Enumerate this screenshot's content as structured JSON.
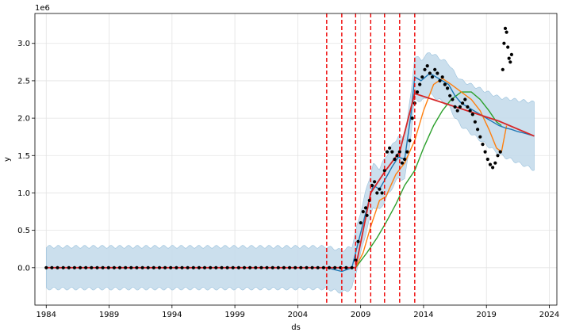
{
  "chart_data": {
    "type": "line",
    "title": "",
    "xlabel": "ds",
    "ylabel": "y",
    "y_multiplier_label": "1e6",
    "xlim": [
      1983.1,
      2024.6
    ],
    "ylim": [
      -500000,
      3400000
    ],
    "x_ticks": [
      1984,
      1989,
      1994,
      1999,
      2004,
      2009,
      2014,
      2019,
      2024
    ],
    "y_ticks": [
      0,
      500000,
      1000000,
      1500000,
      2000000,
      2500000,
      3000000
    ],
    "y_tick_labels": [
      "0.0",
      "0.5",
      "1.0",
      "1.5",
      "2.0",
      "2.5",
      "3.0"
    ],
    "grid": true,
    "changepoints": [
      2006.3,
      2007.5,
      2008.6,
      2009.8,
      2010.9,
      2012.1,
      2013.3
    ],
    "colors": {
      "band": "#c6dcec",
      "band_edge": "#8fbbd9",
      "forecast": "#1f77b4",
      "trend": "#d62728",
      "orange": "#ff7f0e",
      "green": "#2ca02c",
      "observed": "#000000",
      "changepoint": "#ee0000"
    },
    "series": [
      {
        "role": "trend",
        "x": [
          1984,
          2007.5,
          2008.6,
          2009.8,
          2010.9,
          2012.1,
          2013.3,
          2020.0,
          2022.8
        ],
        "y": [
          0,
          0,
          0,
          1000000,
          1280000,
          1550000,
          2330000,
          1960000,
          1760000
        ]
      },
      {
        "role": "forecast",
        "x": [
          1984,
          2006.3,
          2007.5,
          2008.3,
          2008.9,
          2009.5,
          2010.0,
          2010.5,
          2011.0,
          2011.5,
          2012.0,
          2012.5,
          2013.0,
          2013.3,
          2013.8,
          2014.5,
          2015.0,
          2015.5,
          2016.0,
          2016.5,
          2017.0,
          2017.5,
          2018.0,
          2018.5,
          2019.0,
          2019.5,
          2020.0,
          2020.5,
          2021.0,
          2021.5,
          2022.0,
          2022.8
        ],
        "y": [
          0,
          0,
          -50000,
          0,
          400000,
          800000,
          1100000,
          1050000,
          1200000,
          1350000,
          1480000,
          1450000,
          2050000,
          2550000,
          2500000,
          2600000,
          2550000,
          2500000,
          2450000,
          2300000,
          2200000,
          2150000,
          2100000,
          2050000,
          2000000,
          1950000,
          1900000,
          1870000,
          1850000,
          1820000,
          1800000,
          1760000
        ]
      },
      {
        "role": "orange",
        "x": [
          1984,
          2008.6,
          2009.2,
          2009.8,
          2010.5,
          2011.0,
          2011.8,
          2012.5,
          2013.3,
          2014.0,
          2014.8,
          2015.5,
          2016.2,
          2017.0,
          2017.8,
          2018.5,
          2019.2,
          2019.8,
          2020.2,
          2020.6
        ],
        "y": [
          0,
          0,
          200000,
          550000,
          900000,
          950000,
          1250000,
          1400000,
          1700000,
          2100000,
          2450000,
          2530000,
          2450000,
          2350000,
          2250000,
          2100000,
          1850000,
          1600000,
          1550000,
          1900000
        ]
      },
      {
        "role": "green",
        "x": [
          1984,
          2008.6,
          2009.5,
          2010.3,
          2011.0,
          2011.8,
          2012.5,
          2013.3,
          2014.0,
          2014.8,
          2015.5,
          2016.2,
          2017.0,
          2017.8,
          2018.5,
          2019.2,
          2019.8,
          2020.2
        ],
        "y": [
          0,
          0,
          200000,
          400000,
          600000,
          850000,
          1100000,
          1300000,
          1600000,
          1900000,
          2100000,
          2250000,
          2350000,
          2350000,
          2250000,
          2100000,
          1950000,
          1900000
        ]
      },
      {
        "role": "observed",
        "x": [
          2008.6,
          2008.8,
          2009.0,
          2009.2,
          2009.4,
          2009.5,
          2009.7,
          2009.9,
          2010.1,
          2010.3,
          2010.5,
          2010.7,
          2010.9,
          2011.1,
          2011.3,
          2011.5,
          2011.7,
          2011.9,
          2012.1,
          2012.3,
          2012.5,
          2012.7,
          2012.9,
          2013.1,
          2013.3,
          2013.5,
          2013.7,
          2013.9,
          2014.1,
          2014.3,
          2014.5,
          2014.7,
          2014.9,
          2015.1,
          2015.3,
          2015.5,
          2015.7,
          2015.9,
          2016.1,
          2016.3,
          2016.5,
          2016.7,
          2016.9,
          2017.1,
          2017.3,
          2017.5,
          2017.7,
          2017.9,
          2018.1,
          2018.3,
          2018.5,
          2018.7,
          2018.9,
          2019.1,
          2019.3,
          2019.5,
          2019.7,
          2019.9,
          2020.1,
          2020.3,
          2020.4,
          2020.5,
          2020.6,
          2020.7,
          2020.8,
          2020.9,
          2021.0
        ],
        "y": [
          100000,
          350000,
          600000,
          750000,
          800000,
          700000,
          900000,
          1100000,
          1150000,
          1000000,
          1050000,
          1000000,
          1300000,
          1550000,
          1600000,
          1550000,
          1450000,
          1500000,
          1550000,
          1400000,
          1450000,
          1550000,
          1700000,
          2000000,
          2200000,
          2350000,
          2450000,
          2550000,
          2650000,
          2700000,
          2600000,
          2550000,
          2650000,
          2600000,
          2500000,
          2550000,
          2450000,
          2400000,
          2300000,
          2250000,
          2150000,
          2100000,
          2150000,
          2200000,
          2250000,
          2150000,
          2100000,
          2050000,
          1950000,
          1850000,
          1750000,
          1650000,
          1550000,
          1450000,
          1380000,
          1340000,
          1400000,
          1500000,
          1550000,
          2650000,
          3000000,
          3200000,
          3150000,
          2950000,
          2800000,
          2750000,
          2850000
        ]
      }
    ]
  }
}
